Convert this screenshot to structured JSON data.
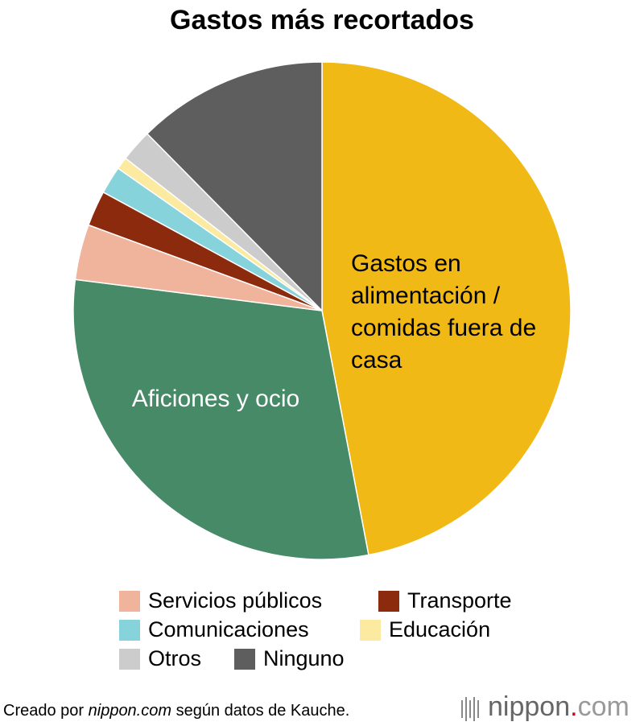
{
  "chart_data": {
    "type": "pie",
    "title": "Gastos más recortados",
    "categories": [
      "Gastos en alimentación / comidas fuera de casa",
      "Aficiones y ocio",
      "Servicios públicos",
      "Transporte",
      "Comunicaciones",
      "Educación",
      "Otros",
      "Ninguno"
    ],
    "values": [
      47,
      30,
      3.6,
      2.3,
      1.8,
      0.8,
      2.1,
      12.4
    ],
    "colors": [
      "#f0b916",
      "#468a68",
      "#f0b39b",
      "#8b2a0c",
      "#86d3dc",
      "#fbeaa0",
      "#cccccc",
      "#5e5e5e"
    ]
  },
  "source": {
    "prefix": "Creado por",
    "site": "nippon.com",
    "suffix": "según datos de Kauche."
  },
  "logo": {
    "name": "nippon",
    "dot": ".",
    "tld": "com"
  }
}
